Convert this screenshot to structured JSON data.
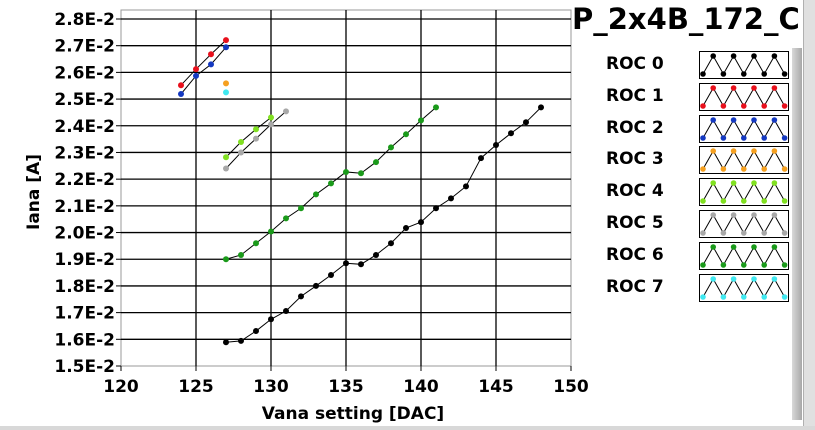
{
  "chart_data": {
    "type": "line",
    "title": "P_2x4B_172_C",
    "xlabel": "Vana setting [DAC]",
    "ylabel": "Iana [A]",
    "xlim": [
      120,
      150
    ],
    "ylim": [
      0.015,
      0.028
    ],
    "x_ticks": [
      "120",
      "125",
      "130",
      "135",
      "140",
      "145",
      "150"
    ],
    "y_ticks": [
      "1.5E-2",
      "1.6E-2",
      "1.7E-2",
      "1.8E-2",
      "1.9E-2",
      "2.0E-2",
      "2.1E-2",
      "2.2E-2",
      "2.3E-2",
      "2.4E-2",
      "2.5E-2",
      "2.6E-2",
      "2.7E-2",
      "2.8E-2"
    ],
    "grid": true,
    "legend_position": "right",
    "series": [
      {
        "name": "ROC 0",
        "color": "#000000",
        "x": [
          127,
          128,
          129,
          130,
          131,
          132,
          133,
          134,
          135,
          136,
          137,
          138,
          139,
          140,
          141,
          142,
          143,
          144,
          145,
          146,
          147,
          148
        ],
        "y": [
          0.01589,
          0.01594,
          0.01631,
          0.01675,
          0.01706,
          0.01761,
          0.018,
          0.01841,
          0.01885,
          0.01881,
          0.01916,
          0.0196,
          0.02017,
          0.02039,
          0.02091,
          0.02128,
          0.02173,
          0.02279,
          0.02328,
          0.02372,
          0.02413,
          0.02469
        ]
      },
      {
        "name": "ROC 1",
        "color": "#e8101c",
        "x": [
          124,
          125,
          126,
          127
        ],
        "y": [
          0.02552,
          0.02612,
          0.02668,
          0.02721
        ]
      },
      {
        "name": "ROC 2",
        "color": "#1438c0",
        "x": [
          124,
          125,
          126,
          127
        ],
        "y": [
          0.02519,
          0.02587,
          0.0263,
          0.02694
        ]
      },
      {
        "name": "ROC 3",
        "color": "#f5a020",
        "x": [
          127
        ],
        "y": [
          0.02559
        ]
      },
      {
        "name": "ROC 4",
        "color": "#80e020",
        "x": [
          127,
          128,
          129,
          130
        ],
        "y": [
          0.02282,
          0.02339,
          0.02387,
          0.02431
        ]
      },
      {
        "name": "ROC 5",
        "color": "#a8a8a8",
        "x": [
          127,
          128,
          129,
          130,
          131
        ],
        "y": [
          0.0224,
          0.023,
          0.02352,
          0.02405,
          0.02454
        ]
      },
      {
        "name": "ROC 6",
        "color": "#1a9a1a",
        "x": [
          127,
          128,
          129,
          130,
          131,
          132,
          133,
          134,
          135,
          136,
          137,
          138,
          139,
          140,
          141
        ],
        "y": [
          0.019,
          0.01916,
          0.0196,
          0.02004,
          0.02053,
          0.02091,
          0.02143,
          0.02184,
          0.02227,
          0.02222,
          0.02264,
          0.02319,
          0.02368,
          0.0242,
          0.02469
        ]
      },
      {
        "name": "ROC 7",
        "color": "#40e8f0",
        "x": [
          127
        ],
        "y": [
          0.02525
        ]
      }
    ]
  }
}
